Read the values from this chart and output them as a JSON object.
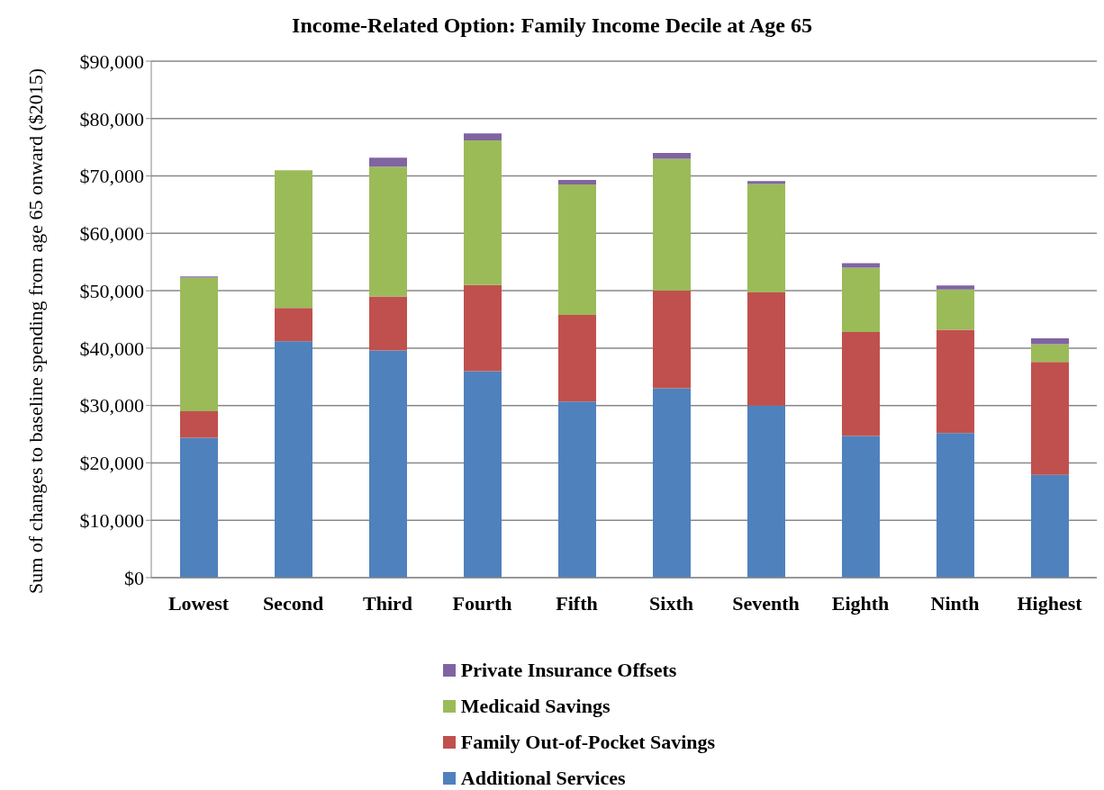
{
  "chart_data": {
    "type": "bar",
    "title": "Income-Related Option: Family Income Decile at Age 65",
    "ylabel": "Sum of changes to baseline spending from age 65 onward ($2015)",
    "categories": [
      "Lowest",
      "Second",
      "Third",
      "Fourth",
      "Fifth",
      "Sixth",
      "Seventh",
      "Eighth",
      "Ninth",
      "Highest"
    ],
    "stacked": true,
    "series": [
      {
        "name": "Additional Services",
        "color": "#4f81bd",
        "values": [
          24400,
          41200,
          39600,
          36000,
          30700,
          33000,
          30000,
          24700,
          25200,
          17900
        ]
      },
      {
        "name": "Family Out-of-Pocket Savings",
        "color": "#c0504d",
        "values": [
          4600,
          5800,
          9400,
          15000,
          15100,
          17000,
          19700,
          18100,
          18000,
          19700
        ]
      },
      {
        "name": "Medicaid Savings",
        "color": "#9bbb59",
        "values": [
          23300,
          24000,
          22600,
          25200,
          22700,
          23000,
          18900,
          11200,
          7000,
          3100
        ]
      },
      {
        "name": "Private Insurance Offsets",
        "color": "#8064a2",
        "values": [
          200,
          0,
          1600,
          1200,
          800,
          1000,
          500,
          800,
          700,
          1000
        ]
      }
    ],
    "ylim": [
      0,
      90000
    ],
    "yticks": [
      {
        "value": 0,
        "label": "$0"
      },
      {
        "value": 10000,
        "label": "$10,000"
      },
      {
        "value": 20000,
        "label": "$20,000"
      },
      {
        "value": 30000,
        "label": "$30,000"
      },
      {
        "value": 40000,
        "label": "$40,000"
      },
      {
        "value": 50000,
        "label": "$50,000"
      },
      {
        "value": 60000,
        "label": "$60,000"
      },
      {
        "value": 70000,
        "label": "$70,000"
      },
      {
        "value": 80000,
        "label": "$80,000"
      },
      {
        "value": 90000,
        "label": "$90,000"
      }
    ],
    "grid": "y",
    "legend": "bottom"
  }
}
